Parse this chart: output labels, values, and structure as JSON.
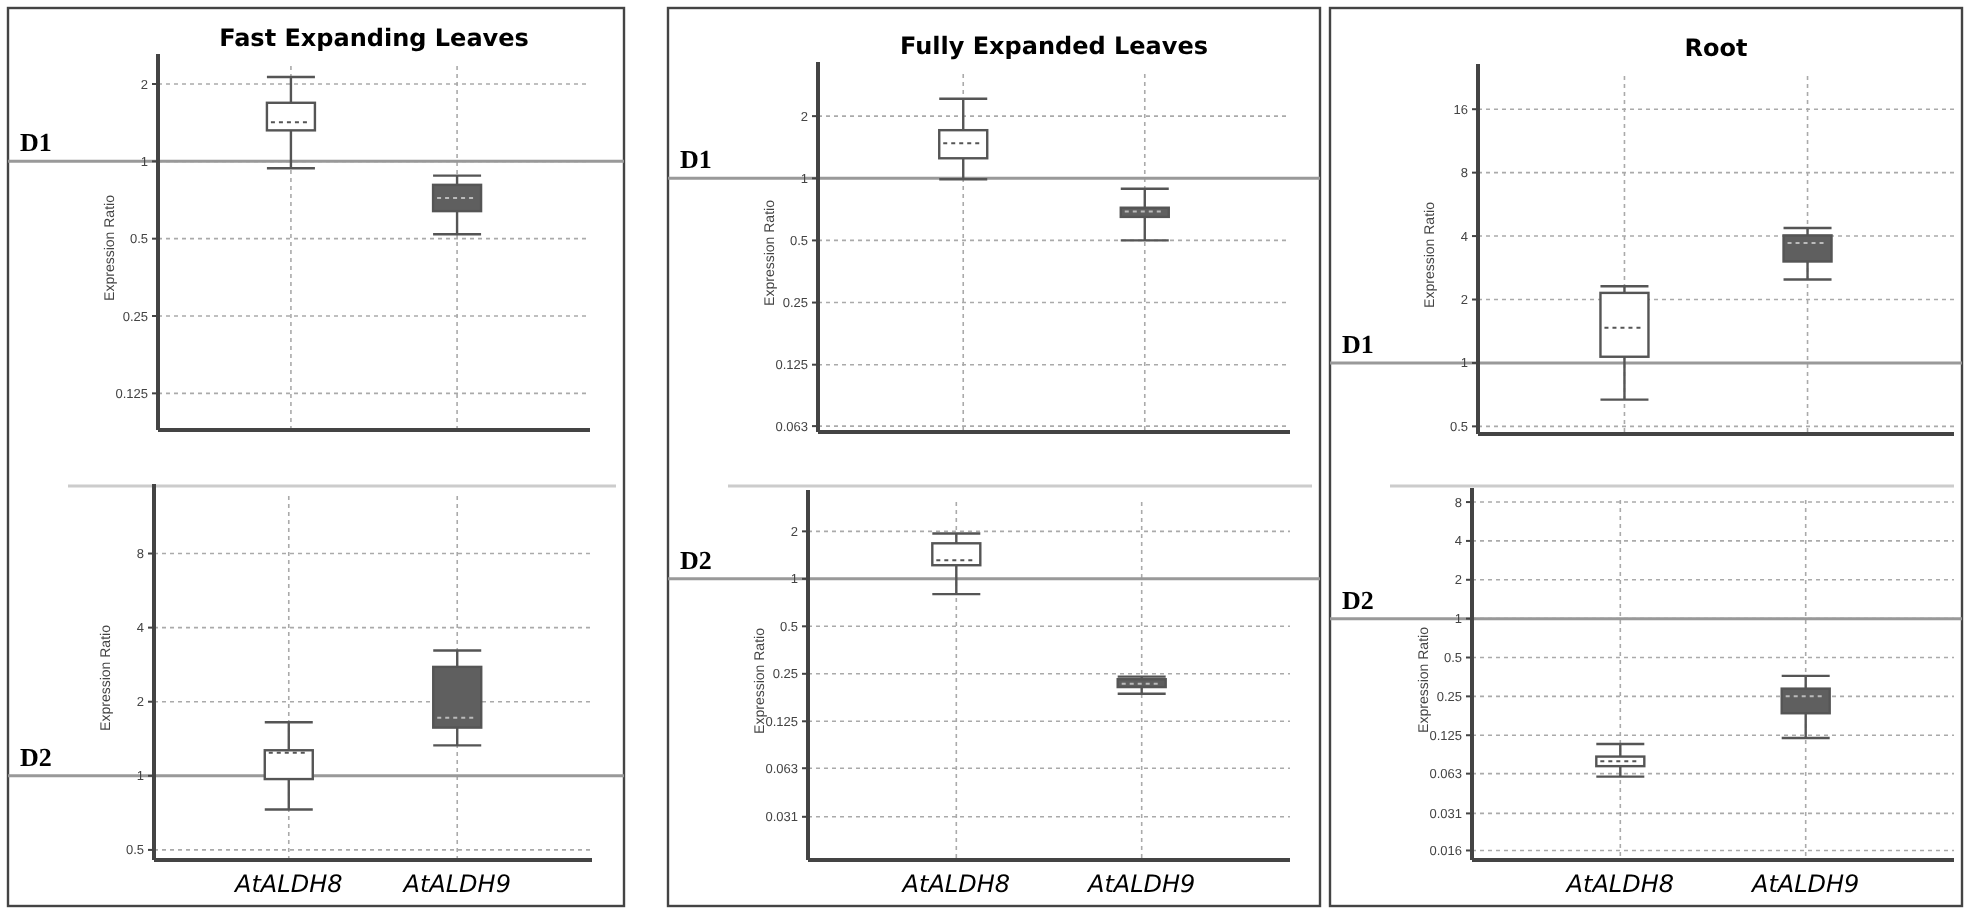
{
  "chart_data": [
    {
      "type": "box",
      "title": "Fast Expanding Leaves",
      "ylabel": "Expression Ratio",
      "categories": [
        null,
        null
      ],
      "colors": [
        "#ffffff",
        "#5f5f5f"
      ],
      "log": true,
      "ylim": [
        0.09,
        2.35
      ],
      "yticks": [
        0.125,
        0.25,
        0.5,
        1,
        2
      ],
      "grid": true,
      "ref_lines": [
        {
          "axis": "y",
          "value": 1,
          "label": "D1"
        }
      ],
      "boxes": [
        {
          "low": 0.94,
          "q1": 1.32,
          "median": 1.42,
          "q3": 1.69,
          "high": 2.13
        },
        {
          "low": 0.52,
          "q1": 0.64,
          "median": 0.72,
          "q3": 0.81,
          "high": 0.88
        }
      ]
    },
    {
      "type": "box",
      "ylabel": "Expression Ratio",
      "categories": [
        "AtALDH8",
        "AtALDH9"
      ],
      "colors": [
        "#ffffff",
        "#5f5f5f"
      ],
      "log": true,
      "ylim": [
        0.455,
        13.7
      ],
      "yticks": [
        0.5,
        1,
        2,
        4,
        8
      ],
      "grid": true,
      "ref_lines": [
        {
          "axis": "y",
          "value": 1,
          "label": "D2"
        }
      ],
      "boxes": [
        {
          "low": 0.73,
          "q1": 0.97,
          "median": 1.24,
          "q3": 1.27,
          "high": 1.65
        },
        {
          "low": 1.33,
          "q1": 1.57,
          "median": 1.72,
          "q3": 2.77,
          "high": 3.23
        }
      ]
    },
    {
      "type": "box",
      "title": "Fully Expanded Leaves",
      "ylabel": "Expression Ratio",
      "categories": [
        null,
        null
      ],
      "colors": [
        "#ffffff",
        "#5f5f5f"
      ],
      "log": true,
      "ylim": [
        0.059,
        3.2
      ],
      "yticks": [
        0.063,
        0.125,
        0.25,
        0.5,
        1,
        2
      ],
      "grid": true,
      "ref_lines": [
        {
          "axis": "y",
          "value": 1,
          "label": "D1"
        }
      ],
      "boxes": [
        {
          "low": 0.99,
          "q1": 1.25,
          "median": 1.48,
          "q3": 1.71,
          "high": 2.43
        },
        {
          "low": 0.5,
          "q1": 0.65,
          "median": 0.69,
          "q3": 0.72,
          "high": 0.89
        }
      ]
    },
    {
      "type": "box",
      "ylabel": "Expression Ratio",
      "categories": [
        "AtALDH8",
        "AtALDH9"
      ],
      "colors": [
        "#ffffff",
        "#5f5f5f"
      ],
      "log": true,
      "ylim": [
        0.0165,
        3.07
      ],
      "yticks": [
        0.031,
        0.063,
        0.125,
        0.25,
        0.5,
        1,
        2
      ],
      "grid": true,
      "ref_lines": [
        {
          "axis": "y",
          "value": 1,
          "label": "D2"
        }
      ],
      "boxes": [
        {
          "low": 0.8,
          "q1": 1.22,
          "median": 1.31,
          "q3": 1.68,
          "high": 1.94
        },
        {
          "low": 0.187,
          "q1": 0.206,
          "median": 0.216,
          "q3": 0.231,
          "high": 0.24
        }
      ]
    },
    {
      "type": "box",
      "title": "Root",
      "ylabel": "Expression Ratio",
      "categories": [
        null,
        null
      ],
      "colors": [
        "#ffffff",
        "#5f5f5f"
      ],
      "log": true,
      "ylim": [
        0.46,
        23
      ],
      "yticks": [
        0.5,
        1,
        2,
        4,
        8,
        16
      ],
      "grid": true,
      "ref_lines": [
        {
          "axis": "y",
          "value": 1,
          "label": "D1"
        }
      ],
      "boxes": [
        {
          "low": 0.67,
          "q1": 1.07,
          "median": 1.47,
          "q3": 2.15,
          "high": 2.31
        },
        {
          "low": 2.49,
          "q1": 3.03,
          "median": 3.71,
          "q3": 4.03,
          "high": 4.37
        }
      ]
    },
    {
      "type": "box",
      "ylabel": "Expression Ratio",
      "categories": [
        "AtALDH8",
        "AtALDH9"
      ],
      "colors": [
        "#ffffff",
        "#5f5f5f"
      ],
      "log": true,
      "ylim": [
        0.0135,
        8.3
      ],
      "yticks": [
        0.016,
        0.031,
        0.063,
        0.125,
        0.25,
        0.5,
        1,
        2,
        4,
        8
      ],
      "grid": true,
      "ref_lines": [
        {
          "axis": "y",
          "value": 1,
          "label": "D2"
        }
      ],
      "boxes": [
        {
          "low": 0.0597,
          "q1": 0.072,
          "median": 0.0786,
          "q3": 0.0854,
          "high": 0.107
        },
        {
          "low": 0.119,
          "q1": 0.185,
          "median": 0.25,
          "q3": 0.287,
          "high": 0.36
        }
      ]
    }
  ]
}
